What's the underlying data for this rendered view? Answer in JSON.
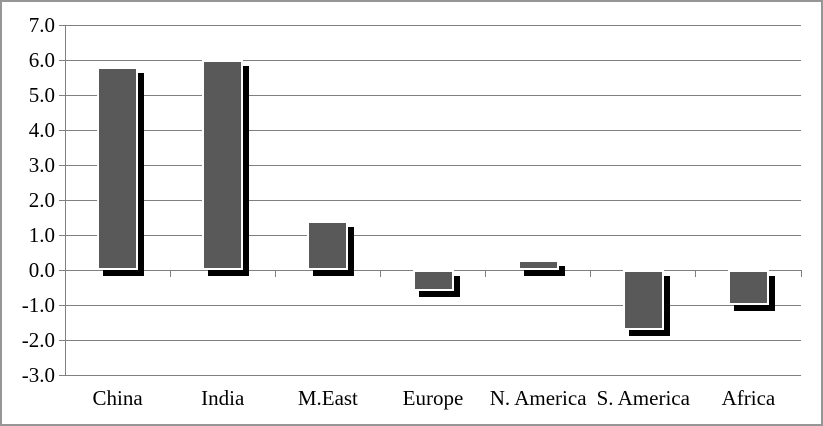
{
  "chart_data": {
    "type": "bar",
    "title": "",
    "xlabel": "",
    "ylabel": "",
    "categories": [
      "China",
      "India",
      "M.East",
      "Europe",
      "N. America",
      "S. America",
      "Africa"
    ],
    "values": [
      5.8,
      6.0,
      1.4,
      -0.6,
      0.3,
      -1.7,
      -1.0
    ],
    "ylim": [
      -3.0,
      7.0
    ],
    "y_tick_step": 1.0,
    "y_tick_labels": [
      "7.0",
      "6.0",
      "5.0",
      "4.0",
      "3.0",
      "2.0",
      "1.0",
      "0.0",
      "-1.0",
      "-2.0",
      "-3.0"
    ],
    "grid": true,
    "legend_position": "none",
    "bar_style": {
      "fill": "#595959",
      "shadow": "#000000",
      "border": "#ffffff"
    },
    "colors": {
      "gridline": "#808080",
      "axis": "#808080",
      "text": "#000000",
      "background": "#ffffff",
      "frame_border": "#969696"
    }
  }
}
